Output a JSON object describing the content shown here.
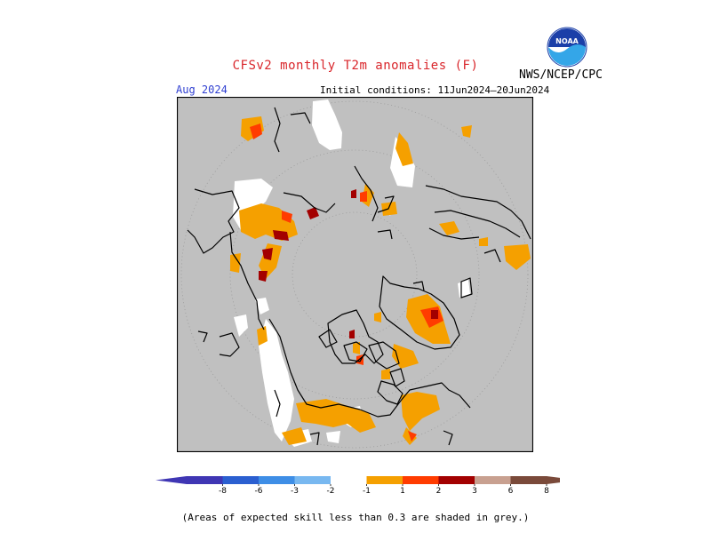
{
  "header": {
    "title": "CFSv2 monthly T2m anomalies (F)",
    "period": "Aug 2024",
    "initial_conditions": "Initial conditions: 11Jun2024—20Jun2024",
    "agency": "NWS/NCEP/CPC",
    "logo_text": "NOAA"
  },
  "colorbar": {
    "labels": [
      "-8",
      "-6",
      "-3",
      "-2",
      "-1",
      "1",
      "2",
      "3",
      "6",
      "8"
    ],
    "colors": [
      "#3f36b4",
      "#2b5fd0",
      "#3e8ee6",
      "#78b8f0",
      "#ffffff",
      "#f5a000",
      "#ff3c00",
      "#a30000",
      "#c8a090",
      "#7a4a3a"
    ]
  },
  "legend_colors": {
    "grey_low_skill": "#c0c0c0",
    "near_normal": "#ffffff",
    "warm_1_2": "#f5a000",
    "warm_2_3": "#ff3c00",
    "warm_3_6": "#a30000"
  },
  "footnote": "(Areas of expected skill less than 0.3 are shaded in grey.)"
}
